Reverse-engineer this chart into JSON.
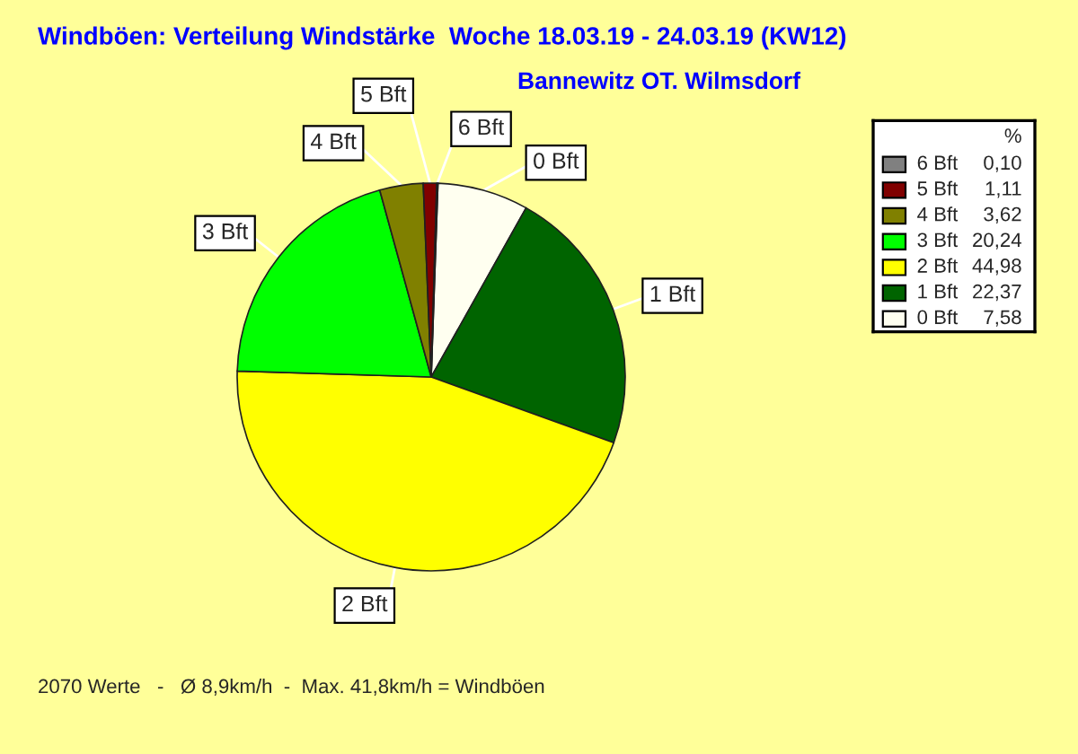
{
  "chart_data": {
    "type": "pie",
    "title": "Windböen: Verteilung Windstärke  Woche 18.03.19 - 24.03.19 (KW12)",
    "subtitle": "Bannewitz OT. Wilmsdorf",
    "legend_title": "%",
    "categories": [
      "0 Bft",
      "1 Bft",
      "2 Bft",
      "3 Bft",
      "4 Bft",
      "5 Bft",
      "6 Bft"
    ],
    "values": [
      7.58,
      22.37,
      44.98,
      20.24,
      3.62,
      1.11,
      0.1
    ],
    "value_labels": [
      "7,58",
      "22,37",
      "44,98",
      "20,24",
      "3,62",
      "1,11",
      "0,10"
    ],
    "colors": [
      "#fffff0",
      "#006400",
      "#ffff00",
      "#00ff00",
      "#808000",
      "#800000",
      "#808080"
    ],
    "legend": "right",
    "annotations": [
      "2070 Werte   -   Ø 8,9km/h  -  Max. 41,8km/h = Windböen"
    ]
  }
}
